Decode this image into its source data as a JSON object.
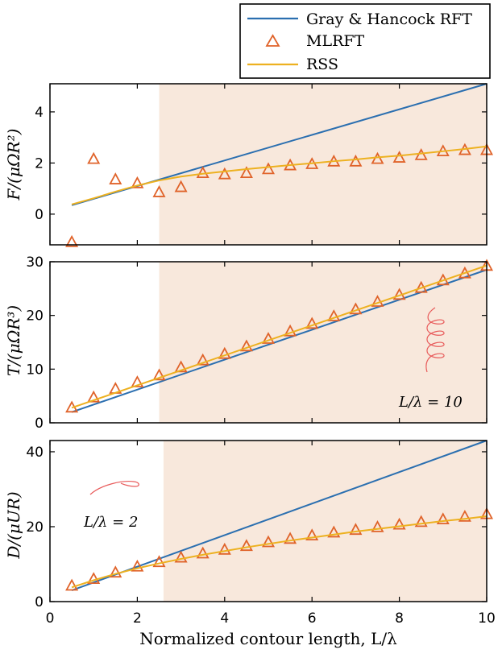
{
  "colors": {
    "ghrft": "#2b6fb0",
    "mlrft": "#e0632a",
    "rss": "#edb120",
    "shade": "#f8e8dc",
    "inset_curve": "#e85a5a"
  },
  "legend": {
    "entries": [
      "Gray & Hancock RFT",
      "MLRFT",
      "RSS"
    ],
    "placement": "top-right"
  },
  "chart_data": [
    {
      "type": "line",
      "panel": "force",
      "ylabel": "F/(μΩR²)",
      "xlabel": "",
      "xlim": [
        0,
        10
      ],
      "ylim": [
        -1.2,
        5.1
      ],
      "yticks": [
        0,
        2,
        4
      ],
      "xticks": [
        0,
        2,
        4,
        6,
        8,
        10
      ],
      "shaded_region_x": [
        2.5,
        10
      ],
      "series": [
        {
          "name": "Gray & Hancock RFT",
          "x": [
            0.5,
            10
          ],
          "y": [
            0.35,
            5.1
          ]
        },
        {
          "name": "MLRFT",
          "x": [
            0.5,
            1,
            1.5,
            2,
            2.5,
            3,
            3.5,
            4,
            4.5,
            5,
            5.5,
            6,
            6.5,
            7,
            7.5,
            8,
            8.5,
            9,
            9.5,
            10
          ],
          "y": [
            -1.1,
            2.15,
            1.35,
            1.2,
            0.85,
            1.05,
            1.6,
            1.55,
            1.6,
            1.75,
            1.9,
            1.95,
            2.05,
            2.05,
            2.15,
            2.2,
            2.3,
            2.45,
            2.5,
            2.5
          ]
        },
        {
          "name": "RSS",
          "x": [
            0.5,
            1,
            1.5,
            2,
            2.5,
            3,
            3.5,
            4,
            4.5,
            5,
            5.5,
            6,
            6.5,
            7,
            7.5,
            8,
            8.5,
            9,
            9.5,
            10
          ],
          "y": [
            0.38,
            0.62,
            0.88,
            1.12,
            1.32,
            1.47,
            1.58,
            1.67,
            1.76,
            1.84,
            1.92,
            1.99,
            2.07,
            2.14,
            2.22,
            2.29,
            2.37,
            2.46,
            2.55,
            2.65
          ]
        }
      ]
    },
    {
      "type": "line",
      "panel": "torque",
      "ylabel": "T/(μΩR³)",
      "xlabel": "",
      "xlim": [
        0,
        10
      ],
      "ylim": [
        0,
        30
      ],
      "yticks": [
        0,
        10,
        20,
        30
      ],
      "xticks": [
        0,
        2,
        4,
        6,
        8,
        10
      ],
      "shaded_region_x": [
        2.5,
        10
      ],
      "annotation": "L/λ = 10",
      "series": [
        {
          "name": "Gray & Hancock RFT",
          "x": [
            0.5,
            10
          ],
          "y": [
            2.0,
            28.5
          ]
        },
        {
          "name": "MLRFT",
          "x": [
            0.5,
            1,
            1.5,
            2,
            2.5,
            3,
            3.5,
            4,
            4.5,
            5,
            5.5,
            6,
            6.5,
            7,
            7.5,
            8,
            8.5,
            9,
            9.5,
            10
          ],
          "y": [
            2.8,
            4.7,
            6.3,
            7.5,
            8.8,
            10.3,
            11.6,
            12.8,
            14.2,
            15.6,
            17.0,
            18.4,
            19.8,
            21.1,
            22.5,
            23.8,
            25.1,
            26.5,
            27.8,
            29.2
          ]
        },
        {
          "name": "RSS",
          "x": [
            0.5,
            10
          ],
          "y": [
            2.8,
            29.3
          ]
        }
      ]
    },
    {
      "type": "line",
      "panel": "drag",
      "ylabel": "D/(μUR)",
      "xlabel": "Normalized contour length, L/λ",
      "xlim": [
        0,
        10
      ],
      "ylim": [
        0,
        43
      ],
      "yticks": [
        0,
        20,
        40
      ],
      "xticks": [
        0,
        2,
        4,
        6,
        8,
        10
      ],
      "shaded_region_x": [
        2.6,
        10
      ],
      "annotation": "L/λ = 2",
      "series": [
        {
          "name": "Gray & Hancock RFT",
          "x": [
            0.5,
            10
          ],
          "y": [
            3.0,
            43.0
          ]
        },
        {
          "name": "MLRFT",
          "x": [
            0.5,
            1,
            1.5,
            2,
            2.5,
            3,
            3.5,
            4,
            4.5,
            5,
            5.5,
            6,
            6.5,
            7,
            7.5,
            8,
            8.5,
            9,
            9.5,
            10
          ],
          "y": [
            4.2,
            6.0,
            7.7,
            9.3,
            10.5,
            11.7,
            12.8,
            13.8,
            14.8,
            15.8,
            16.7,
            17.6,
            18.4,
            19.1,
            19.8,
            20.5,
            21.2,
            21.9,
            22.6,
            23.3
          ]
        },
        {
          "name": "RSS",
          "x": [
            0.5,
            1,
            1.5,
            2,
            2.5,
            3,
            3.5,
            4,
            4.5,
            5,
            5.5,
            6,
            6.5,
            7,
            7.5,
            8,
            8.5,
            9,
            9.5,
            10
          ],
          "y": [
            3.8,
            5.7,
            7.4,
            8.9,
            10.2,
            11.4,
            12.5,
            13.5,
            14.5,
            15.4,
            16.3,
            17.1,
            17.9,
            18.7,
            19.4,
            20.1,
            20.8,
            21.5,
            22.1,
            22.8
          ]
        }
      ]
    }
  ]
}
